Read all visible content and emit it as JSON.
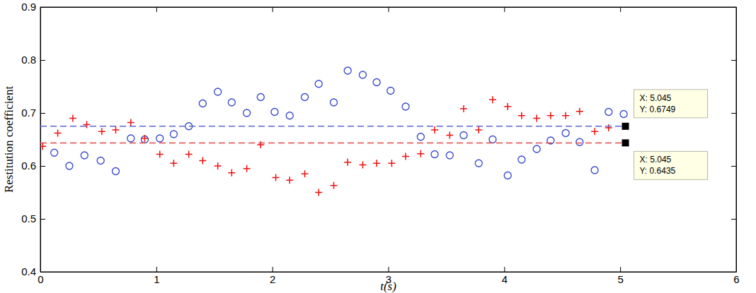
{
  "chart_data": {
    "type": "scatter",
    "x_label": "t(s)",
    "y_label": "Restitution coefficient",
    "xlim": [
      0,
      6
    ],
    "xticks": [
      0,
      1,
      2,
      3,
      4,
      5,
      6
    ],
    "ylim": [
      0.4,
      0.9
    ],
    "yticks": [
      0.4,
      0.5,
      0.6,
      0.7,
      0.8,
      0.9
    ],
    "grid": false,
    "series": [
      {
        "type": "scatter",
        "marker": "circle",
        "color": "#3344cc",
        "x": [
          0.12,
          0.25,
          0.38,
          0.52,
          0.65,
          0.78,
          0.9,
          1.03,
          1.15,
          1.28,
          1.4,
          1.53,
          1.65,
          1.78,
          1.9,
          2.02,
          2.15,
          2.28,
          2.4,
          2.53,
          2.65,
          2.78,
          2.9,
          3.02,
          3.15,
          3.28,
          3.4,
          3.53,
          3.65,
          3.78,
          3.9,
          4.03,
          4.15,
          4.28,
          4.4,
          4.53,
          4.65,
          4.78,
          4.9,
          5.03
        ],
        "values": [
          0.625,
          0.6,
          0.62,
          0.61,
          0.59,
          0.652,
          0.65,
          0.652,
          0.66,
          0.675,
          0.718,
          0.74,
          0.72,
          0.7,
          0.73,
          0.702,
          0.695,
          0.73,
          0.755,
          0.72,
          0.78,
          0.772,
          0.758,
          0.742,
          0.712,
          0.655,
          0.622,
          0.62,
          0.658,
          0.605,
          0.65,
          0.582,
          0.612,
          0.632,
          0.648,
          0.662,
          0.645,
          0.592,
          0.702,
          0.698
        ]
      },
      {
        "type": "scatter",
        "marker": "plus",
        "color": "#ee1111",
        "x": [
          0.02,
          0.15,
          0.28,
          0.4,
          0.53,
          0.65,
          0.78,
          0.9,
          1.03,
          1.15,
          1.28,
          1.4,
          1.53,
          1.65,
          1.78,
          1.9,
          2.03,
          2.15,
          2.28,
          2.4,
          2.53,
          2.65,
          2.78,
          2.9,
          3.03,
          3.15,
          3.28,
          3.4,
          3.53,
          3.65,
          3.78,
          3.9,
          4.03,
          4.15,
          4.28,
          4.4,
          4.53,
          4.65,
          4.78,
          4.9
        ],
        "values": [
          0.637,
          0.662,
          0.69,
          0.678,
          0.665,
          0.668,
          0.682,
          0.652,
          0.622,
          0.605,
          0.622,
          0.61,
          0.6,
          0.587,
          0.595,
          0.64,
          0.578,
          0.573,
          0.585,
          0.55,
          0.563,
          0.607,
          0.602,
          0.605,
          0.605,
          0.618,
          0.623,
          0.668,
          0.658,
          0.708,
          0.668,
          0.725,
          0.712,
          0.695,
          0.69,
          0.695,
          0.695,
          0.703,
          0.665,
          0.672
        ]
      },
      {
        "type": "line",
        "line_style": "dashed",
        "color": "#5b66d6",
        "x": [
          0,
          5.045
        ],
        "values": [
          0.6749,
          0.6749
        ]
      },
      {
        "type": "line",
        "line_style": "dashed",
        "color": "#e04848",
        "x": [
          0,
          5.045
        ],
        "values": [
          0.6435,
          0.6435
        ]
      }
    ],
    "annotations": [
      {
        "x": 5.045,
        "y": 0.6749,
        "position": "above",
        "lines": [
          "X: 5.045",
          "Y: 0.6749"
        ]
      },
      {
        "x": 5.045,
        "y": 0.6435,
        "position": "below",
        "lines": [
          "X: 5.045",
          "Y: 0.6435"
        ]
      }
    ]
  }
}
